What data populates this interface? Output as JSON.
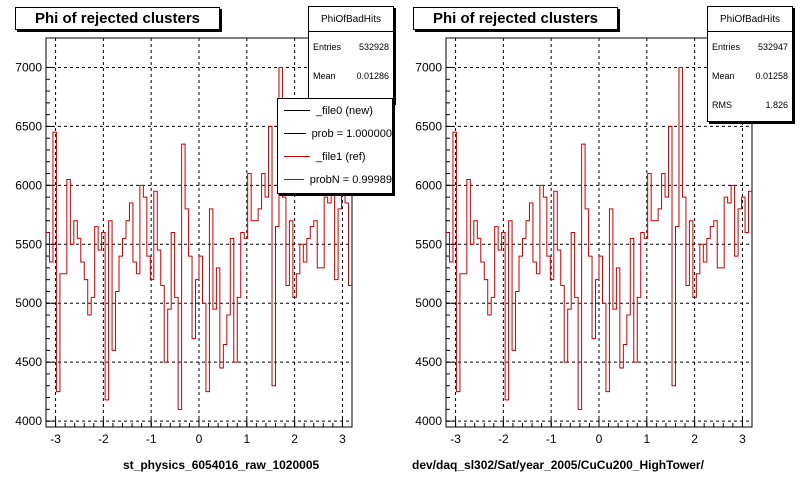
{
  "colors": {
    "hist": "#cc0000",
    "ref": "#cc0000",
    "axis": "#000000",
    "grid": "#000000"
  },
  "panels": [
    {
      "title": "Phi of rejected clusters",
      "xlabel": "st_physics_6054016_raw_1020005",
      "stats": {
        "name": "PhiOfBadHits",
        "rows": [
          {
            "label": "Entries",
            "value": "532928"
          },
          {
            "label": "Mean",
            "value": "0.01286"
          }
        ]
      },
      "legend": [
        {
          "label": "_file0 (new)",
          "color": "#000000"
        },
        {
          "label": "prob = 1.000000",
          "color": "#000000"
        },
        {
          "label": "_file1 (ref)",
          "color": "#cc0000"
        },
        {
          "label": "probN = 0.99989",
          "color": "#cc0000"
        }
      ]
    },
    {
      "title": "Phi of rejected clusters",
      "xlabel": "dev/daq_sl302/Sat/year_2005/CuCu200_HighTower/",
      "stats": {
        "name": "PhiOfBadHits",
        "rows": [
          {
            "label": "Entries",
            "value": "532947"
          },
          {
            "label": "Mean",
            "value": "0.01258"
          },
          {
            "label": "RMS",
            "value": "1.826"
          }
        ]
      },
      "legend": []
    }
  ],
  "chart_data": [
    {
      "type": "line",
      "title": "Phi of rejected clusters",
      "xlabel": "st_physics_6054016_raw_1020005",
      "xlim": [
        -3.2,
        3.2
      ],
      "ylim": [
        3950,
        7250
      ],
      "xticks": [
        -3,
        -2,
        -1,
        0,
        1,
        2,
        3
      ],
      "yticks": [
        4000,
        4500,
        5000,
        5500,
        6000,
        6500,
        7000
      ],
      "grid": true,
      "step": true,
      "series": [
        {
          "name": "_file1 (ref)",
          "x_start": -3.2,
          "x_end": 3.2,
          "values": [
            5600,
            5350,
            6450,
            4250,
            5250,
            5250,
            6050,
            5500,
            5700,
            5550,
            5350,
            5200,
            4900,
            5050,
            5650,
            5450,
            5600,
            4180,
            5700,
            4600,
            5100,
            5400,
            5550,
            5700,
            5850,
            5350,
            5250,
            6000,
            5900,
            5400,
            5200,
            5950,
            5450,
            5150,
            4500,
            4950,
            5600,
            5050,
            4100,
            6350,
            5800,
            5400,
            4700,
            5200,
            5400,
            5000,
            4250,
            5800,
            4950,
            5300,
            4450,
            4650,
            4900,
            5550,
            4500,
            5050,
            5600,
            5550,
            6100,
            5700,
            5700,
            5800,
            6100,
            5900,
            6500,
            4300,
            5650,
            7000,
            5900,
            5150,
            5700,
            5050,
            5250,
            5500,
            5350,
            5550,
            5650,
            5700,
            5300,
            5300,
            5900,
            5850,
            6700,
            5200,
            5800,
            6000,
            5850,
            5150
          ]
        }
      ]
    },
    {
      "type": "line",
      "title": "Phi of rejected clusters",
      "xlabel": "dev/daq_sl302/Sat/year_2005/CuCu200_HighTower/",
      "xlim": [
        -3.2,
        3.2
      ],
      "ylim": [
        3950,
        7250
      ],
      "xticks": [
        -3,
        -2,
        -1,
        0,
        1,
        2,
        3
      ],
      "yticks": [
        4000,
        4500,
        5000,
        5500,
        6000,
        6500,
        7000
      ],
      "grid": true,
      "step": true,
      "series": [
        {
          "name": "PhiOfBadHits",
          "x_start": -3.2,
          "x_end": 3.2,
          "values": [
            5600,
            5350,
            6450,
            4250,
            5250,
            5250,
            6050,
            5500,
            5700,
            5550,
            5350,
            5200,
            4900,
            5050,
            5650,
            5450,
            5600,
            4180,
            5700,
            4600,
            5100,
            5400,
            5550,
            5700,
            5850,
            5350,
            5250,
            6000,
            5900,
            5400,
            5200,
            5950,
            5450,
            5150,
            4500,
            4950,
            5600,
            5050,
            4100,
            6350,
            5800,
            5400,
            4700,
            5200,
            5400,
            5000,
            4250,
            5800,
            4950,
            5300,
            4450,
            4650,
            4900,
            5550,
            4500,
            5050,
            5600,
            5550,
            6100,
            5700,
            5700,
            5800,
            6100,
            5900,
            6500,
            4300,
            5650,
            7000,
            5900,
            5150,
            5700,
            5050,
            5250,
            5500,
            5350,
            5550,
            5650,
            5700,
            5300,
            5300,
            5900,
            5850,
            6000,
            5400,
            5800,
            5900,
            5600,
            5950
          ]
        }
      ]
    }
  ]
}
